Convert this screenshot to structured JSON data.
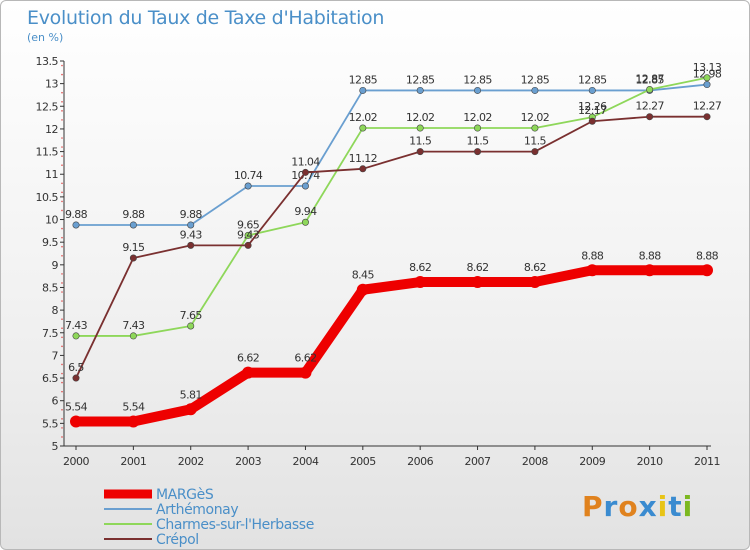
{
  "header": {
    "title": "Evolution du Taux de Taxe d'Habitation",
    "subtitle": "(en %)"
  },
  "logo": {
    "text": "Proxiti",
    "letter_colors": [
      "#e0821e",
      "#3a8bd0",
      "#e0821e",
      "#3a8bd0",
      "#e8c416",
      "#3a8bd0",
      "#7cb820"
    ]
  },
  "chart_data": {
    "type": "line",
    "title": "Evolution du Taux de Taxe d'Habitation",
    "ylabel": "(en %)",
    "xlabel": "",
    "x": [
      "2000",
      "2001",
      "2002",
      "2003",
      "2004",
      "2005",
      "2006",
      "2007",
      "2008",
      "2009",
      "2010",
      "2011"
    ],
    "ylim": [
      5,
      13.5
    ],
    "yticks": [
      "5",
      "5.5",
      "6",
      "6.5",
      "7",
      "7.5",
      "8",
      "8.5",
      "9",
      "9.5",
      "10",
      "10.5",
      "11",
      "11.5",
      "12",
      "12.5",
      "13",
      "13.5"
    ],
    "grid": false,
    "legend_position": "bottom-left",
    "series": [
      {
        "name": "Arthémonay",
        "color": "#6a9fd0",
        "values": [
          9.88,
          9.88,
          9.88,
          10.74,
          10.74,
          12.85,
          12.85,
          12.85,
          12.85,
          12.85,
          12.85,
          12.98
        ],
        "labels": [
          "9.88",
          "9.88",
          "9.88",
          "10.74",
          "10.74",
          "12.85",
          "12.85",
          "12.85",
          "12.85",
          "12.85",
          "12.85",
          "12.98"
        ]
      },
      {
        "name": "Charmes-sur-l'Herbasse",
        "color": "#8ed75a",
        "values": [
          7.43,
          7.43,
          7.65,
          9.65,
          9.94,
          12.02,
          12.02,
          12.02,
          12.02,
          12.26,
          12.87,
          13.13
        ],
        "labels": [
          "7.43",
          "7.43",
          "7.65",
          "9.65",
          "9.94",
          "12.02",
          "12.02",
          "12.02",
          "12.02",
          "12.26",
          "12.87",
          "13.13"
        ]
      },
      {
        "name": "Crépol",
        "color": "#7a3030",
        "values": [
          6.5,
          9.15,
          9.43,
          9.43,
          11.04,
          11.12,
          11.5,
          11.5,
          11.5,
          12.17,
          12.27,
          12.27
        ],
        "labels": [
          "6.5",
          "9.15",
          "9.43",
          "9.43",
          "11.04",
          "11.12",
          "11.5",
          "11.5",
          "11.5",
          "12.17",
          "12.27",
          "12.27"
        ]
      },
      {
        "name": "MARGèS",
        "color": "#ee0000",
        "values": [
          5.54,
          5.54,
          5.81,
          6.62,
          6.62,
          8.45,
          8.62,
          8.62,
          8.62,
          8.88,
          8.88,
          8.88
        ],
        "labels": [
          "5.54",
          "5.54",
          "5.81",
          "6.62",
          "6.62",
          "8.45",
          "8.62",
          "8.62",
          "8.62",
          "8.88",
          "8.88",
          "8.88"
        ]
      }
    ],
    "legend": [
      {
        "name": "MARGèS",
        "color": "#ee0000",
        "thick": true
      },
      {
        "name": "Arthémonay",
        "color": "#6a9fd0",
        "thick": false
      },
      {
        "name": "Charmes-sur-l'Herbasse",
        "color": "#8ed75a",
        "thick": false
      },
      {
        "name": "Crépol",
        "color": "#7a3030",
        "thick": false
      }
    ]
  }
}
